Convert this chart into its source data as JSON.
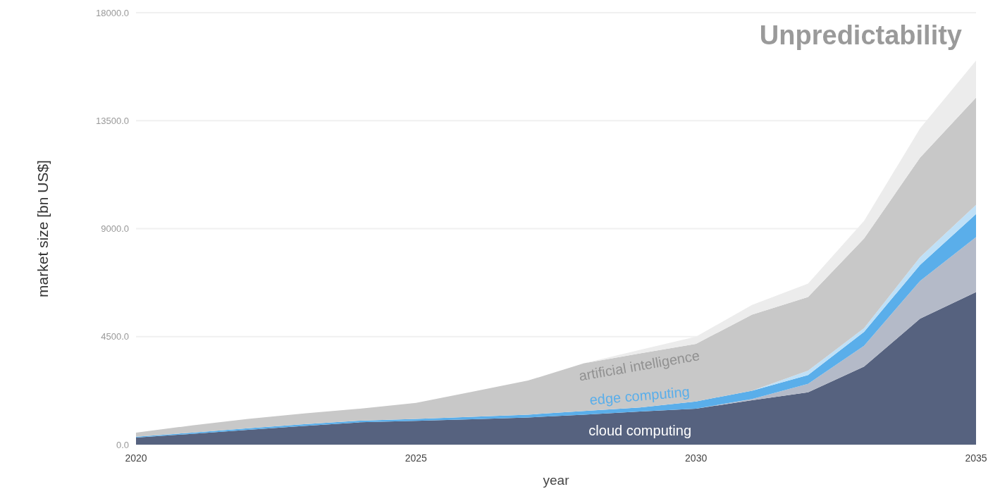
{
  "chart_data": {
    "type": "area",
    "stacked": true,
    "title": "Unpredictability",
    "xlabel": "year",
    "ylabel": "market size [bn US$]",
    "x": [
      2020,
      2021,
      2022,
      2023,
      2024,
      2025,
      2026,
      2027,
      2028,
      2029,
      2030,
      2031,
      2032,
      2033,
      2034,
      2035
    ],
    "xlim": [
      2020,
      2035
    ],
    "xticks": [
      2020,
      2025,
      2030,
      2035
    ],
    "ylim": [
      0,
      18000
    ],
    "yticks": [
      {
        "value": 0,
        "label": "0.0"
      },
      {
        "value": 4500,
        "label": "4500.0"
      },
      {
        "value": 9000,
        "label": "9000.0"
      },
      {
        "value": 13500,
        "label": "13500.0"
      },
      {
        "value": 18000,
        "label": "18000.0"
      }
    ],
    "grid": "y",
    "series": [
      {
        "name": "cloud computing",
        "color": "#56627f",
        "values": [
          290,
          450,
          620,
          780,
          930,
          990,
          1060,
          1130,
          1250,
          1380,
          1500,
          1850,
          2180,
          3250,
          5250,
          6360
        ]
      },
      {
        "color": "#b4bac8",
        "values": [
          0,
          0,
          0,
          0,
          0,
          0,
          0,
          0,
          0,
          0,
          0,
          50,
          350,
          870,
          1570,
          2290
        ]
      },
      {
        "name": "edge computing",
        "color": "#5aaeea",
        "values": [
          40,
          50,
          60,
          70,
          70,
          80,
          100,
          120,
          150,
          170,
          300,
          350,
          370,
          580,
          670,
          960
        ]
      },
      {
        "color": "#bfe0f7",
        "values": [
          0,
          0,
          0,
          0,
          0,
          0,
          0,
          0,
          0,
          0,
          0,
          0,
          180,
          150,
          320,
          380
        ]
      },
      {
        "name": "artificial intelligence",
        "color": "#c8c8c8",
        "values": [
          170,
          300,
          390,
          450,
          500,
          670,
          1040,
          1420,
          1990,
          2250,
          2400,
          3170,
          3070,
          3740,
          4150,
          4470
        ]
      },
      {
        "color": "#ececec",
        "values": [
          0,
          0,
          0,
          0,
          0,
          0,
          0,
          0,
          0,
          150,
          300,
          400,
          560,
          730,
          1220,
          1540
        ]
      }
    ]
  }
}
